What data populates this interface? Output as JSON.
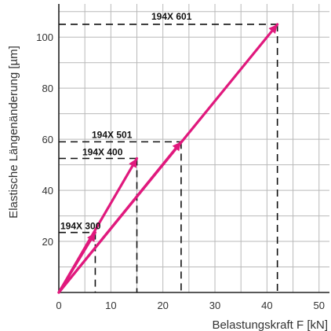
{
  "chart_data": {
    "type": "line",
    "title": "",
    "xlabel": "Belastungskraft F [kN]",
    "ylabel": "Elastische Längenänderung [µm]",
    "xlim": [
      0,
      52
    ],
    "ylim": [
      0,
      113
    ],
    "grid": true,
    "x_ticks": [
      0,
      10,
      20,
      30,
      40,
      50
    ],
    "y_ticks": [
      20,
      40,
      60,
      80,
      100
    ],
    "x_tick_labels": [
      "0",
      "10",
      "20",
      "30",
      "40",
      "50"
    ],
    "y_tick_labels": [
      "20",
      "40",
      "60",
      "80",
      "100"
    ],
    "series": [
      {
        "name": "194X 300",
        "x": [
          0,
          7
        ],
        "y": [
          0,
          23.5
        ]
      },
      {
        "name": "194X 400",
        "x": [
          0,
          15
        ],
        "y": [
          0,
          52.5
        ]
      },
      {
        "name": "194X 501",
        "x": [
          0,
          23.5
        ],
        "y": [
          0,
          59
        ]
      },
      {
        "name": "194X 601",
        "x": [
          0,
          42
        ],
        "y": [
          0,
          105
        ]
      }
    ],
    "line_color": "#e0197d",
    "dash_color": "#111111"
  }
}
